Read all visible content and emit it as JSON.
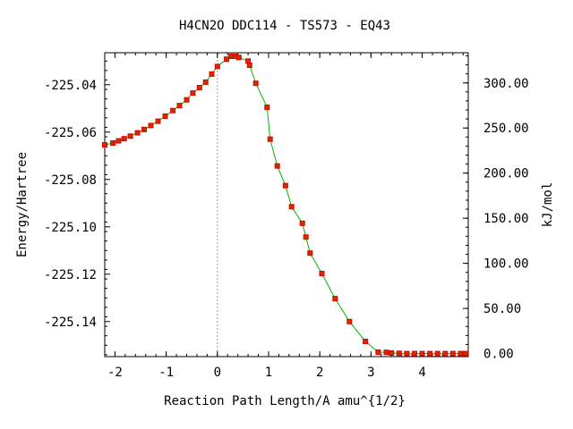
{
  "chart_data": {
    "type": "line",
    "title": "H4CN2O   DDC114 - TS573 - EQ43",
    "xlabel": "Reaction Path Length/A amu^{1/2}",
    "ylabel": "Energy/Hartree",
    "ylabel_right": "kJ/mol",
    "xlim": [
      -2.2,
      4.9
    ],
    "ylim": [
      -225.1548,
      -225.0265
    ],
    "x_ticks": [
      -2,
      -1,
      0,
      1,
      2,
      3,
      4
    ],
    "x_tick_labels": [
      "-2",
      "-1",
      "0",
      "1",
      "2",
      "3",
      "4"
    ],
    "y_ticks": [
      -225.04,
      -225.06,
      -225.08,
      -225.1,
      -225.12,
      -225.14
    ],
    "y_tick_labels": [
      "-225.04",
      "-225.06",
      "-225.08",
      "-225.10",
      "-225.12",
      "-225.14"
    ],
    "y2_ticks": [
      300,
      250,
      200,
      150,
      100,
      50,
      0
    ],
    "y2_tick_labels": [
      "300.00",
      "250.00",
      "200.00",
      "150.00",
      "100.00",
      "50.00",
      "0.00"
    ],
    "y2_zero_energy": -225.1535,
    "kj_per_hartree": 2625.5,
    "transition_state_x": 0,
    "grid": false,
    "series": [
      {
        "marker_color": "#c83200",
        "line_color": "#00b400",
        "points": [
          [
            -2.2,
            -225.0654
          ],
          [
            -2.04,
            -225.0646
          ],
          [
            -1.93,
            -225.0637
          ],
          [
            -1.82,
            -225.0628
          ],
          [
            -1.7,
            -225.0617
          ],
          [
            -1.56,
            -225.0603
          ],
          [
            -1.43,
            -225.0589
          ],
          [
            -1.3,
            -225.0572
          ],
          [
            -1.16,
            -225.0554
          ],
          [
            -1.02,
            -225.0533
          ],
          [
            -0.87,
            -225.0509
          ],
          [
            -0.74,
            -225.0488
          ],
          [
            -0.6,
            -225.0464
          ],
          [
            -0.48,
            -225.0435
          ],
          [
            -0.35,
            -225.0412
          ],
          [
            -0.23,
            -225.0389
          ],
          [
            -0.11,
            -225.0355
          ],
          [
            0.0,
            -225.0323
          ],
          [
            0.18,
            -225.0292
          ],
          [
            0.27,
            -225.028
          ],
          [
            0.34,
            -225.028
          ],
          [
            0.42,
            -225.0285
          ],
          [
            0.6,
            -225.03
          ],
          [
            0.63,
            -225.0318
          ],
          [
            0.75,
            -225.0394
          ],
          [
            0.97,
            -225.0495
          ],
          [
            1.03,
            -225.063
          ],
          [
            1.17,
            -225.0743
          ],
          [
            1.33,
            -225.0826
          ],
          [
            1.45,
            -225.0915
          ],
          [
            1.66,
            -225.0985
          ],
          [
            1.73,
            -225.1043
          ],
          [
            1.81,
            -225.1111
          ],
          [
            2.04,
            -225.1197
          ],
          [
            2.3,
            -225.1303
          ],
          [
            2.58,
            -225.14
          ],
          [
            2.89,
            -225.1484
          ],
          [
            3.14,
            -225.1529
          ],
          [
            3.3,
            -225.153
          ],
          [
            3.4,
            -225.1533
          ],
          [
            3.55,
            -225.1534
          ],
          [
            3.7,
            -225.1535
          ],
          [
            3.85,
            -225.1535
          ],
          [
            4.0,
            -225.1535
          ],
          [
            4.15,
            -225.1535
          ],
          [
            4.3,
            -225.1535
          ],
          [
            4.45,
            -225.1535
          ],
          [
            4.6,
            -225.1535
          ],
          [
            4.75,
            -225.1535
          ],
          [
            4.85,
            -225.1535
          ]
        ]
      }
    ]
  }
}
